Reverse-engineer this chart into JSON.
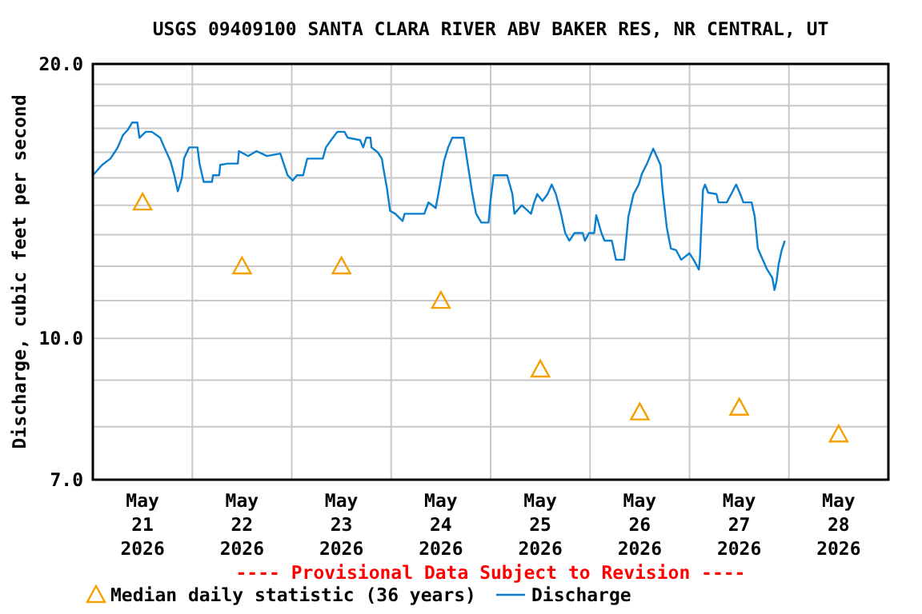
{
  "chart_data": {
    "type": "line",
    "title": "USGS 09409100 SANTA CLARA RIVER ABV BAKER RES, NR CENTRAL, UT",
    "ylabel": "Discharge, cubic feet per second",
    "annotations": [
      "---- Provisional Data Subject to Revision ----"
    ],
    "log": true,
    "grid": true,
    "legend": "bottom",
    "xlim": [
      "2026-05-21T00:00",
      "2026-05-29T00:00"
    ],
    "xticks": [
      {
        "value": "2026-05-21T00:00",
        "label": null
      },
      {
        "value": "2026-05-22T00:00",
        "label": null
      },
      {
        "value": "2026-05-23T00:00",
        "label": null
      },
      {
        "value": "2026-05-24T00:00",
        "label": null
      },
      {
        "value": "2026-05-25T00:00",
        "label": null
      },
      {
        "value": "2026-05-26T00:00",
        "label": null
      },
      {
        "value": "2026-05-27T00:00",
        "label": null
      },
      {
        "value": "2026-05-28T00:00",
        "label": null
      },
      {
        "value": "2026-05-29T00:00",
        "label": null
      },
      {
        "value": "2026-05-21T12:00",
        "label": "May\n21\n2026"
      },
      {
        "value": "2026-05-22T12:00",
        "label": "May\n22\n2026"
      },
      {
        "value": "2026-05-23T12:00",
        "label": "May\n23\n2026"
      },
      {
        "value": "2026-05-24T12:00",
        "label": "May\n24\n2026"
      },
      {
        "value": "2026-05-25T12:00",
        "label": "May\n25\n2026"
      },
      {
        "value": "2026-05-26T12:00",
        "label": "May\n26\n2026"
      },
      {
        "value": "2026-05-27T12:00",
        "label": "May\n27\n2026"
      },
      {
        "value": "2026-05-28T12:00",
        "label": "May\n28\n2026"
      }
    ],
    "ylim": [
      7,
      20
    ],
    "yticks": [
      {
        "value": 7,
        "label": "7.0"
      },
      {
        "value": 8,
        "label": null
      },
      {
        "value": 9,
        "label": null
      },
      {
        "value": 10,
        "label": "10.0"
      },
      {
        "value": 11,
        "label": null
      },
      {
        "value": 12,
        "label": null
      },
      {
        "value": 13,
        "label": null
      },
      {
        "value": 14,
        "label": null
      },
      {
        "value": 15,
        "label": null
      },
      {
        "value": 16,
        "label": null
      },
      {
        "value": 17,
        "label": null
      },
      {
        "value": 18,
        "label": null
      },
      {
        "value": 19,
        "label": null
      },
      {
        "value": 20,
        "label": "20.0"
      }
    ],
    "series": [
      {
        "name": "Median daily statistic (36 years)",
        "type": "scatter",
        "marker": "triangle",
        "color": "#f5a000",
        "x": [
          "2026-05-21T12:00",
          "2026-05-22T12:00",
          "2026-05-23T12:00",
          "2026-05-24T12:00",
          "2026-05-25T12:00",
          "2026-05-26T12:00",
          "2026-05-27T12:00",
          "2026-05-28T12:00"
        ],
        "values": [
          14.1,
          12.0,
          12.0,
          11.0,
          9.25,
          8.3,
          8.4,
          7.85
        ]
      },
      {
        "name": "Discharge",
        "type": "line",
        "marker": "none",
        "color": "#0a7fcf",
        "x": [
          "2026-05-21T00:00",
          "2026-05-21T02:15",
          "2026-05-21T04:15",
          "2026-05-21T05:15",
          "2026-05-21T06:00",
          "2026-05-21T07:15",
          "2026-05-21T08:30",
          "2026-05-21T09:30",
          "2026-05-21T10:45",
          "2026-05-21T11:15",
          "2026-05-21T12:45",
          "2026-05-21T14:15",
          "2026-05-21T16:15",
          "2026-05-21T17:15",
          "2026-05-21T18:45",
          "2026-05-21T19:45",
          "2026-05-21T20:30",
          "2026-05-21T21:30",
          "2026-05-21T22:00",
          "2026-05-21T23:15",
          "2026-05-22T01:15",
          "2026-05-22T01:45",
          "2026-05-22T02:45",
          "2026-05-22T04:45",
          "2026-05-22T05:00",
          "2026-05-22T06:30",
          "2026-05-22T06:45",
          "2026-05-22T08:30",
          "2026-05-22T11:00",
          "2026-05-22T11:15",
          "2026-05-22T13:30",
          "2026-05-22T15:30",
          "2026-05-22T18:00",
          "2026-05-22T21:15",
          "2026-05-22T23:00",
          "2026-05-23T00:15",
          "2026-05-23T01:15",
          "2026-05-23T02:45",
          "2026-05-23T03:45",
          "2026-05-23T07:30",
          "2026-05-23T08:15",
          "2026-05-23T09:30",
          "2026-05-23T11:00",
          "2026-05-23T12:45",
          "2026-05-23T13:30",
          "2026-05-23T16:30",
          "2026-05-23T17:15",
          "2026-05-23T18:00",
          "2026-05-23T19:00",
          "2026-05-23T19:15",
          "2026-05-23T20:45",
          "2026-05-23T21:45",
          "2026-05-23T22:15",
          "2026-05-23T23:00",
          "2026-05-23T23:45",
          "2026-05-24T01:00",
          "2026-05-24T02:45",
          "2026-05-24T03:15",
          "2026-05-24T08:00",
          "2026-05-24T09:00",
          "2026-05-24T10:45",
          "2026-05-24T11:30",
          "2026-05-24T12:45",
          "2026-05-24T13:45",
          "2026-05-24T14:45",
          "2026-05-24T17:30",
          "2026-05-24T18:45",
          "2026-05-24T19:30",
          "2026-05-24T20:30",
          "2026-05-24T21:45",
          "2026-05-24T23:30",
          "2026-05-25T00:00",
          "2026-05-25T00:45",
          "2026-05-25T04:00",
          "2026-05-25T05:15",
          "2026-05-25T05:45",
          "2026-05-25T07:30",
          "2026-05-25T09:45",
          "2026-05-25T10:30",
          "2026-05-25T11:15",
          "2026-05-25T12:30",
          "2026-05-25T13:45",
          "2026-05-25T14:45",
          "2026-05-25T15:45",
          "2026-05-25T17:00",
          "2026-05-25T18:00",
          "2026-05-25T19:00",
          "2026-05-25T20:15",
          "2026-05-25T22:15",
          "2026-05-25T22:45",
          "2026-05-25T23:45",
          "2026-05-26T01:00",
          "2026-05-26T01:30",
          "2026-05-26T02:45",
          "2026-05-26T03:30",
          "2026-05-26T05:15",
          "2026-05-26T06:15",
          "2026-05-26T08:15",
          "2026-05-26T09:15",
          "2026-05-26T10:30",
          "2026-05-26T11:45",
          "2026-05-26T12:30",
          "2026-05-26T13:45",
          "2026-05-26T15:15",
          "2026-05-26T17:00",
          "2026-05-26T17:30",
          "2026-05-26T18:30",
          "2026-05-26T19:30",
          "2026-05-26T20:45",
          "2026-05-26T22:00",
          "2026-05-27T00:00",
          "2026-05-27T01:00",
          "2026-05-27T02:15",
          "2026-05-27T02:30",
          "2026-05-27T03:15",
          "2026-05-27T03:45",
          "2026-05-27T04:30",
          "2026-05-27T06:30",
          "2026-05-27T07:00",
          "2026-05-27T09:00",
          "2026-05-27T10:15",
          "2026-05-27T11:15",
          "2026-05-27T12:15",
          "2026-05-27T13:00",
          "2026-05-27T15:00",
          "2026-05-27T15:45",
          "2026-05-27T16:30",
          "2026-05-27T17:30",
          "2026-05-27T18:45",
          "2026-05-27T20:00",
          "2026-05-27T20:30",
          "2026-05-27T21:00",
          "2026-05-27T21:30",
          "2026-05-27T22:15",
          "2026-05-27T23:00"
        ],
        "values": [
          15.1,
          15.5,
          15.75,
          16.0,
          16.2,
          16.7,
          16.95,
          17.25,
          17.25,
          16.6,
          16.85,
          16.85,
          16.6,
          16.2,
          15.65,
          15.05,
          14.5,
          15.0,
          15.75,
          16.2,
          16.2,
          15.55,
          14.85,
          14.85,
          15.1,
          15.1,
          15.5,
          15.55,
          15.55,
          16.05,
          15.85,
          16.05,
          15.85,
          15.95,
          15.1,
          14.9,
          15.1,
          15.1,
          15.75,
          15.75,
          16.2,
          16.5,
          16.85,
          16.85,
          16.6,
          16.5,
          16.2,
          16.6,
          16.6,
          16.2,
          16.0,
          15.75,
          15.25,
          14.6,
          13.8,
          13.7,
          13.45,
          13.7,
          13.7,
          14.1,
          13.9,
          14.5,
          15.65,
          16.2,
          16.6,
          16.6,
          15.25,
          14.5,
          13.7,
          13.4,
          13.4,
          14.2,
          15.1,
          15.1,
          14.4,
          13.7,
          14.0,
          13.7,
          14.1,
          14.4,
          14.15,
          14.4,
          14.75,
          14.4,
          13.7,
          13.05,
          12.8,
          13.05,
          13.05,
          12.8,
          13.05,
          13.05,
          13.65,
          13.05,
          12.8,
          12.8,
          12.2,
          12.2,
          13.6,
          14.4,
          14.75,
          15.15,
          15.55,
          16.15,
          15.5,
          14.55,
          13.25,
          12.55,
          12.5,
          12.2,
          12.4,
          12.2,
          11.9,
          12.2,
          14.55,
          14.75,
          14.45,
          14.4,
          14.1,
          14.1,
          14.45,
          14.75,
          14.4,
          14.1,
          14.1,
          13.6,
          12.55,
          12.25,
          11.9,
          11.65,
          11.3,
          11.55,
          12.05,
          12.5,
          12.8
        ]
      }
    ]
  }
}
